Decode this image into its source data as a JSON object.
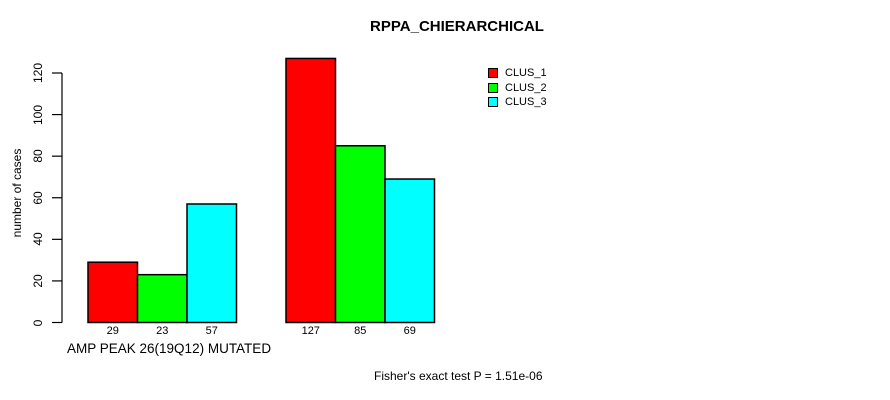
{
  "chart_data": {
    "type": "bar",
    "title": "RPPA_CHIERARCHICAL",
    "ylabel": "number of cases",
    "xlabel": "AMP PEAK 26(19Q12) MUTATED",
    "annotation": "Fisher's exact test P = 1.51e-06",
    "series": [
      {
        "name": "CLUS_1",
        "color": "#ff0000",
        "values": [
          29,
          127
        ]
      },
      {
        "name": "CLUS_2",
        "color": "#00ff00",
        "values": [
          23,
          85
        ]
      },
      {
        "name": "CLUS_3",
        "color": "#00ffff",
        "values": [
          57,
          69
        ]
      }
    ],
    "n_groups": 2,
    "yticks": [
      0,
      20,
      40,
      60,
      80,
      100,
      120
    ],
    "ylim": [
      0,
      127
    ],
    "grid": false,
    "value_labels_shown": true,
    "legend_position": "top-right",
    "axis_color": "#000000",
    "bar_border_color": "#000000",
    "background_color": "#ffffff"
  }
}
